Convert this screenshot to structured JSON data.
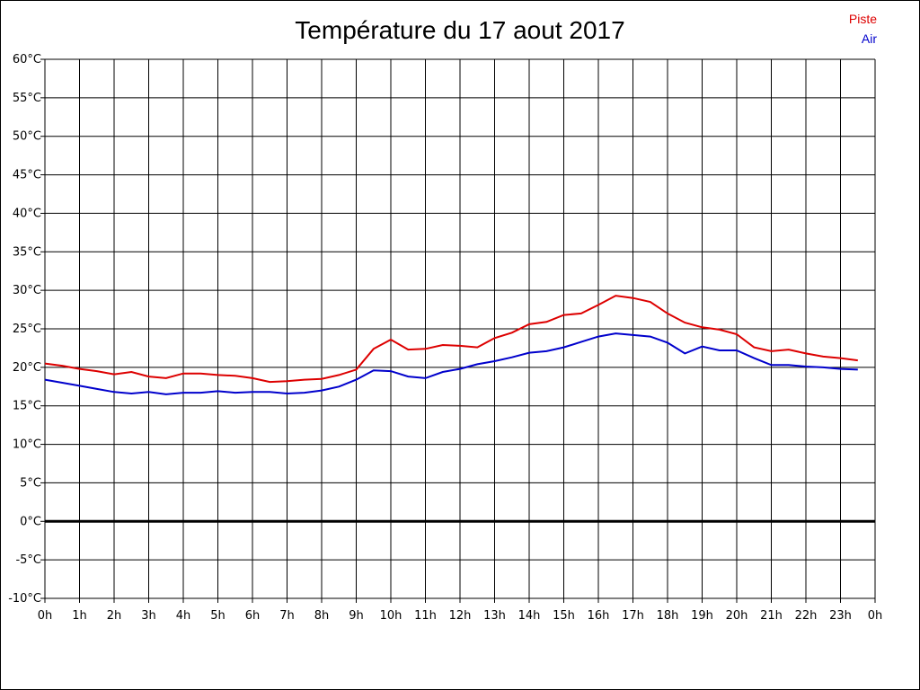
{
  "chart_data": {
    "type": "line",
    "title": "Température du 17 aout 2017",
    "x_ticks": [
      "0h",
      "1h",
      "2h",
      "3h",
      "4h",
      "5h",
      "6h",
      "7h",
      "8h",
      "9h",
      "10h",
      "11h",
      "12h",
      "13h",
      "14h",
      "15h",
      "16h",
      "17h",
      "18h",
      "19h",
      "20h",
      "21h",
      "22h",
      "23h",
      "0h"
    ],
    "y_ticks": [
      "60°C",
      "55°C",
      "50°C",
      "45°C",
      "40°C",
      "35°C",
      "30°C",
      "25°C",
      "20°C",
      "15°C",
      "10°C",
      "5°C",
      "0°C",
      "-5°C",
      "-10°C"
    ],
    "xlim": [
      0,
      24
    ],
    "ylim": [
      -10,
      60
    ],
    "grid": true,
    "legend_position": "top-right",
    "series": [
      {
        "name": "Piste",
        "color": "#dd0000",
        "x": [
          0,
          0.5,
          1,
          1.5,
          2,
          2.5,
          3,
          3.5,
          4,
          4.5,
          5,
          5.5,
          6,
          6.5,
          7,
          7.5,
          8,
          8.5,
          9,
          9.5,
          10,
          10.5,
          11,
          11.5,
          12,
          12.5,
          13,
          13.5,
          14,
          14.5,
          15,
          15.5,
          16,
          16.5,
          17,
          17.5,
          18,
          18.5,
          19,
          19.5,
          20,
          20.5,
          21,
          21.5,
          22,
          22.5,
          23,
          23.5
        ],
        "values": [
          20.5,
          20.2,
          19.8,
          19.5,
          19.1,
          19.4,
          18.8,
          18.6,
          19.2,
          19.2,
          19.0,
          18.9,
          18.6,
          18.1,
          18.2,
          18.4,
          18.5,
          19.0,
          19.7,
          22.4,
          23.6,
          22.3,
          22.4,
          22.9,
          22.8,
          22.6,
          23.8,
          24.5,
          25.6,
          25.9,
          26.8,
          27.0,
          28.1,
          29.3,
          29.0,
          28.5,
          27.0,
          25.8,
          25.2,
          24.9,
          24.3,
          22.6,
          22.1,
          22.3,
          21.8,
          21.4,
          21.2,
          20.9
        ]
      },
      {
        "name": "Air",
        "color": "#0000cc",
        "x": [
          0,
          0.5,
          1,
          1.5,
          2,
          2.5,
          3,
          3.5,
          4,
          4.5,
          5,
          5.5,
          6,
          6.5,
          7,
          7.5,
          8,
          8.5,
          9,
          9.5,
          10,
          10.5,
          11,
          11.5,
          12,
          12.5,
          13,
          13.5,
          14,
          14.5,
          15,
          15.5,
          16,
          16.5,
          17,
          17.5,
          18,
          18.5,
          19,
          19.5,
          20,
          20.5,
          21,
          21.5,
          22,
          22.5,
          23,
          23.5
        ],
        "values": [
          18.4,
          18.0,
          17.6,
          17.2,
          16.8,
          16.6,
          16.8,
          16.5,
          16.7,
          16.7,
          16.9,
          16.7,
          16.8,
          16.8,
          16.6,
          16.7,
          17.0,
          17.5,
          18.4,
          19.6,
          19.5,
          18.8,
          18.6,
          19.4,
          19.8,
          20.4,
          20.8,
          21.3,
          21.9,
          22.1,
          22.6,
          23.3,
          24.0,
          24.4,
          24.2,
          24.0,
          23.2,
          21.8,
          22.7,
          22.2,
          22.2,
          21.2,
          20.3,
          20.3,
          20.1,
          20.0,
          19.8,
          19.7
        ]
      }
    ]
  }
}
